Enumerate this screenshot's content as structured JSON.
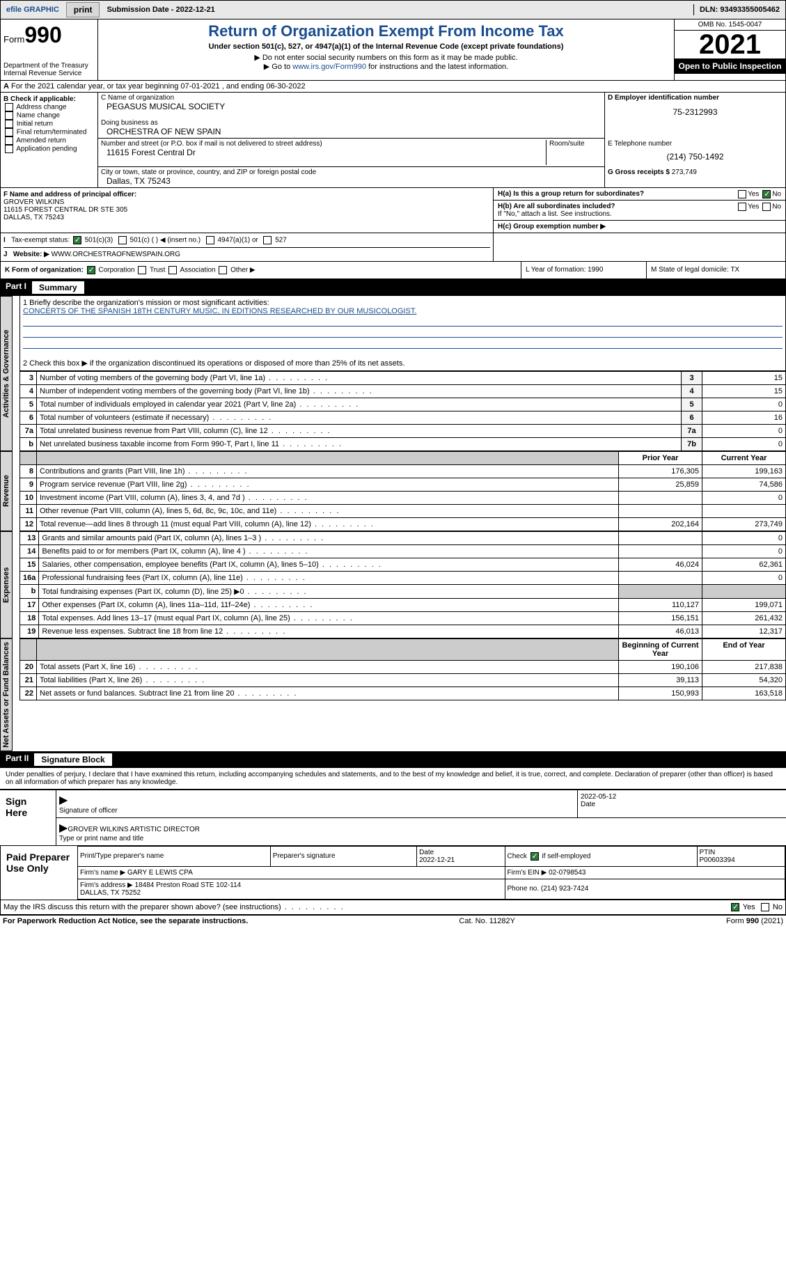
{
  "topbar": {
    "efile": "efile GRAPHIC",
    "print": "print",
    "subdate_label": "Submission Date - ",
    "subdate": "2022-12-21",
    "dln": "DLN: 93493355005462"
  },
  "header": {
    "form": "Form",
    "form_no": "990",
    "dept": "Department of the Treasury\nInternal Revenue Service",
    "title": "Return of Organization Exempt From Income Tax",
    "sub1": "Under section 501(c), 527, or 4947(a)(1) of the Internal Revenue Code (except private foundations)",
    "sub2": "▶ Do not enter social security numbers on this form as it may be made public.",
    "sub3_pre": "▶ Go to ",
    "sub3_link": "www.irs.gov/Form990",
    "sub3_post": " for instructions and the latest information.",
    "omb": "OMB No. 1545-0047",
    "year": "2021",
    "inspect": "Open to Public Inspection"
  },
  "section_a": "For the 2021 calendar year, or tax year beginning 07-01-2021   , and ending 06-30-2022",
  "box_b": {
    "title": "B Check if applicable:",
    "items": [
      "Address change",
      "Name change",
      "Initial return",
      "Final return/terminated",
      "Amended return",
      "Application pending"
    ]
  },
  "box_c": {
    "name_lbl": "C Name of organization",
    "name": "PEGASUS MUSICAL SOCIETY",
    "dba_lbl": "Doing business as",
    "dba": "ORCHESTRA OF NEW SPAIN",
    "addr_lbl": "Number and street (or P.O. box if mail is not delivered to street address)",
    "room_lbl": "Room/suite",
    "addr": "11615 Forest Central Dr",
    "city_lbl": "City or town, state or province, country, and ZIP or foreign postal code",
    "city": "Dallas, TX  75243"
  },
  "box_d": {
    "lbl": "D Employer identification number",
    "val": "75-2312993"
  },
  "box_e": {
    "lbl": "E Telephone number",
    "val": "(214) 750-1492"
  },
  "box_g": {
    "lbl": "G Gross receipts $",
    "val": "273,749"
  },
  "box_f": {
    "lbl": "F  Name and address of principal officer:",
    "name": "GROVER WILKINS",
    "addr": "11615 FOREST CENTRAL DR STE 305\nDALLAS, TX  75243"
  },
  "box_h": {
    "a": "H(a)  Is this a group return for subordinates?",
    "b": "H(b)  Are all subordinates included?",
    "note": "If \"No,\" attach a list. See instructions.",
    "c": "H(c)  Group exemption number ▶",
    "yes": "Yes",
    "no": "No"
  },
  "tax_status": {
    "lbl": "Tax-exempt status:",
    "opts": [
      "501(c)(3)",
      "501(c) (   ) ◀ (insert no.)",
      "4947(a)(1) or",
      "527"
    ]
  },
  "website": {
    "lbl": "Website: ▶",
    "val": "WWW.ORCHESTRAOFNEWSPAIN.ORG"
  },
  "row_k": {
    "k": "K Form of organization:",
    "opts": [
      "Corporation",
      "Trust",
      "Association",
      "Other ▶"
    ],
    "l": "L Year of formation: 1990",
    "m": "M State of legal domicile: TX"
  },
  "part1": {
    "num": "Part I",
    "title": "Summary"
  },
  "mission": {
    "q1": "1  Briefly describe the organization's mission or most significant activities:",
    "txt": "CONCERTS OF THE SPANISH 18TH CENTURY MUSIC, IN EDITIONS RESEARCHED BY OUR MUSICOLOGIST.",
    "q2": "2  Check this box ▶      if the organization discontinued its operations or disposed of more than 25% of its net assets."
  },
  "gov_lines": [
    {
      "n": "3",
      "t": "Number of voting members of the governing body (Part VI, line 1a)",
      "box": "3",
      "v": "15"
    },
    {
      "n": "4",
      "t": "Number of independent voting members of the governing body (Part VI, line 1b)",
      "box": "4",
      "v": "15"
    },
    {
      "n": "5",
      "t": "Total number of individuals employed in calendar year 2021 (Part V, line 2a)",
      "box": "5",
      "v": "0"
    },
    {
      "n": "6",
      "t": "Total number of volunteers (estimate if necessary)",
      "box": "6",
      "v": "16"
    },
    {
      "n": "7a",
      "t": "Total unrelated business revenue from Part VIII, column (C), line 12",
      "box": "7a",
      "v": "0"
    },
    {
      "n": "b",
      "t": "Net unrelated business taxable income from Form 990-T, Part I, line 11",
      "box": "7b",
      "v": "0"
    }
  ],
  "rev_hdr": {
    "py": "Prior Year",
    "cy": "Current Year"
  },
  "rev_lines": [
    {
      "n": "8",
      "t": "Contributions and grants (Part VIII, line 1h)",
      "py": "176,305",
      "cy": "199,163"
    },
    {
      "n": "9",
      "t": "Program service revenue (Part VIII, line 2g)",
      "py": "25,859",
      "cy": "74,586"
    },
    {
      "n": "10",
      "t": "Investment income (Part VIII, column (A), lines 3, 4, and 7d )",
      "py": "",
      "cy": "0"
    },
    {
      "n": "11",
      "t": "Other revenue (Part VIII, column (A), lines 5, 6d, 8c, 9c, 10c, and 11e)",
      "py": "",
      "cy": ""
    },
    {
      "n": "12",
      "t": "Total revenue—add lines 8 through 11 (must equal Part VIII, column (A), line 12)",
      "py": "202,164",
      "cy": "273,749"
    }
  ],
  "exp_lines": [
    {
      "n": "13",
      "t": "Grants and similar amounts paid (Part IX, column (A), lines 1–3 )",
      "py": "",
      "cy": "0"
    },
    {
      "n": "14",
      "t": "Benefits paid to or for members (Part IX, column (A), line 4 )",
      "py": "",
      "cy": "0"
    },
    {
      "n": "15",
      "t": "Salaries, other compensation, employee benefits (Part IX, column (A), lines 5–10)",
      "py": "46,024",
      "cy": "62,361"
    },
    {
      "n": "16a",
      "t": "Professional fundraising fees (Part IX, column (A), line 11e)",
      "py": "",
      "cy": "0"
    },
    {
      "n": "b",
      "t": "Total fundraising expenses (Part IX, column (D), line 25) ▶0",
      "py": "—",
      "cy": "—"
    },
    {
      "n": "17",
      "t": "Other expenses (Part IX, column (A), lines 11a–11d, 11f–24e)",
      "py": "110,127",
      "cy": "199,071"
    },
    {
      "n": "18",
      "t": "Total expenses. Add lines 13–17 (must equal Part IX, column (A), line 25)",
      "py": "156,151",
      "cy": "261,432"
    },
    {
      "n": "19",
      "t": "Revenue less expenses. Subtract line 18 from line 12",
      "py": "46,013",
      "cy": "12,317"
    }
  ],
  "net_hdr": {
    "py": "Beginning of Current Year",
    "cy": "End of Year"
  },
  "net_lines": [
    {
      "n": "20",
      "t": "Total assets (Part X, line 16)",
      "py": "190,106",
      "cy": "217,838"
    },
    {
      "n": "21",
      "t": "Total liabilities (Part X, line 26)",
      "py": "39,113",
      "cy": "54,320"
    },
    {
      "n": "22",
      "t": "Net assets or fund balances. Subtract line 21 from line 20",
      "py": "150,993",
      "cy": "163,518"
    }
  ],
  "tabs": {
    "gov": "Activities & Governance",
    "rev": "Revenue",
    "exp": "Expenses",
    "net": "Net Assets or Fund Balances"
  },
  "part2": {
    "num": "Part II",
    "title": "Signature Block"
  },
  "sig": {
    "decl": "Under penalties of perjury, I declare that I have examined this return, including accompanying schedules and statements, and to the best of my knowledge and belief, it is true, correct, and complete. Declaration of preparer (other than officer) is based on all information of which preparer has any knowledge.",
    "sign_here": "Sign Here",
    "sig_officer": "Signature of officer",
    "date": "2022-05-12",
    "date_lbl": "Date",
    "name": "GROVER WILKINS  ARTISTIC DIRECTOR",
    "name_lbl": "Type or print name and title"
  },
  "prep": {
    "title": "Paid Preparer Use Only",
    "h": [
      "Print/Type preparer's name",
      "Preparer's signature",
      "Date",
      "",
      "PTIN"
    ],
    "date": "2022-12-21",
    "check": "Check",
    "self": "if self-employed",
    "ptin": "P00603394",
    "firm_lbl": "Firm's name    ▶",
    "firm": "GARY E LEWIS CPA",
    "ein_lbl": "Firm's EIN ▶",
    "ein": "02-0798543",
    "addr_lbl": "Firm's address ▶",
    "addr": "18484 Preston Road STE 102-114\nDALLAS, TX  75252",
    "phone_lbl": "Phone no.",
    "phone": "(214) 923-7424"
  },
  "may_discuss": "May the IRS discuss this return with the preparer shown above? (see instructions)",
  "footer": {
    "l": "For Paperwork Reduction Act Notice, see the separate instructions.",
    "m": "Cat. No. 11282Y",
    "r": "Form 990 (2021)"
  }
}
